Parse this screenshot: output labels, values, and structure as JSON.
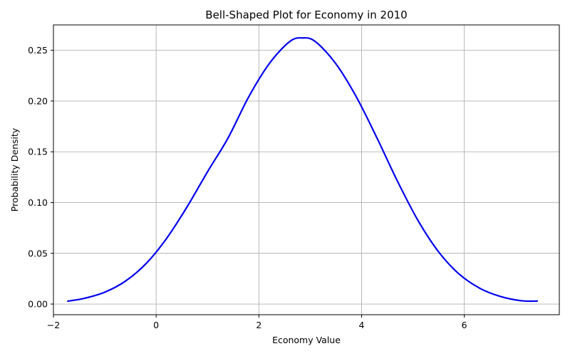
{
  "chart_data": {
    "type": "line",
    "title": "Bell-Shaped Plot for Economy in 2010",
    "xlabel": "Economy Value",
    "ylabel": "Probability Density",
    "xlim": [
      -2.0,
      7.85
    ],
    "ylim": [
      -0.0105,
      0.275
    ],
    "x_ticks": [
      -2,
      0,
      2,
      4,
      6
    ],
    "x_tick_labels": [
      "−2",
      "0",
      "2",
      "4",
      "6"
    ],
    "y_ticks": [
      0.0,
      0.05,
      0.1,
      0.15,
      0.2,
      0.25
    ],
    "y_tick_labels": [
      "0.00",
      "0.05",
      "0.10",
      "0.15",
      "0.20",
      "0.25"
    ],
    "grid": true,
    "series": [
      {
        "color": "#0000ee",
        "x": [
          -1.72,
          -1.4,
          -1.0,
          -0.6,
          -0.2,
          0.2,
          0.6,
          1.0,
          1.4,
          1.8,
          2.2,
          2.6,
          2.85,
          3.1,
          3.5,
          3.9,
          4.3,
          4.7,
          5.1,
          5.5,
          5.9,
          6.3,
          6.7,
          7.1,
          7.42
        ],
        "y": [
          0.0029,
          0.0056,
          0.0117,
          0.0225,
          0.0397,
          0.0644,
          0.0956,
          0.1303,
          0.1636,
          0.2039,
          0.2367,
          0.2586,
          0.2622,
          0.2586,
          0.2367,
          0.2039,
          0.1636,
          0.1209,
          0.0822,
          0.0514,
          0.0295,
          0.0156,
          0.0075,
          0.0033,
          0.0029
        ]
      }
    ]
  }
}
